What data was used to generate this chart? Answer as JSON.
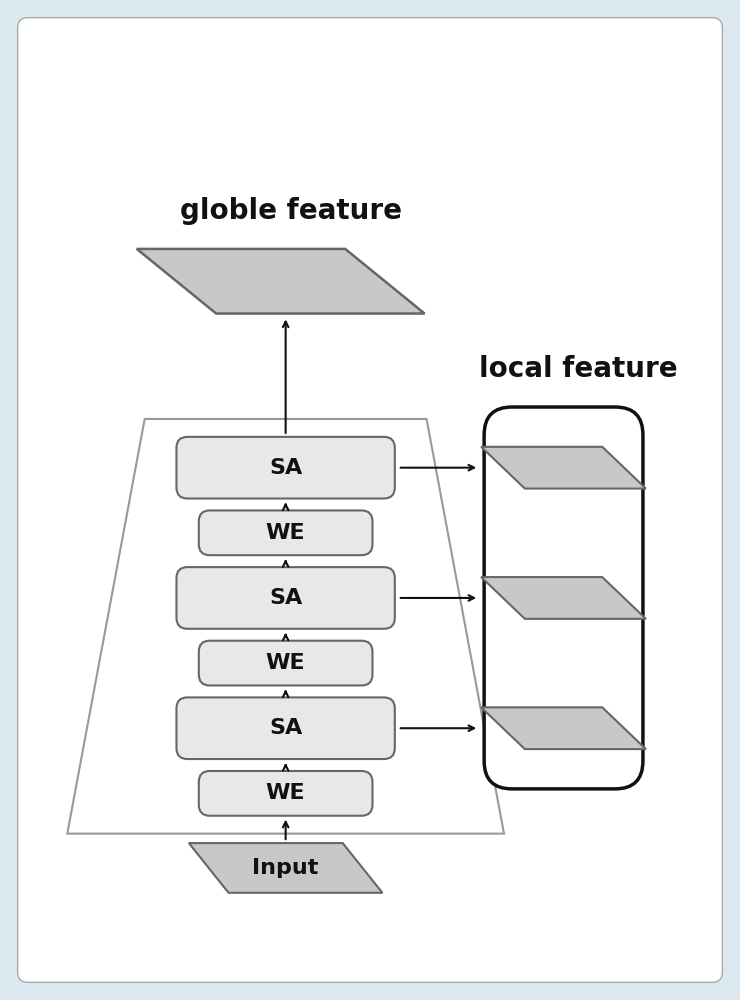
{
  "bg_color": "#dce8f0",
  "box_fill": "#e8e8e8",
  "box_edge": "#666666",
  "para_fill": "#c8c8c8",
  "para_edge": "#666666",
  "arrow_color": "#111111",
  "trap_fill": "#ffffff",
  "trap_edge": "#888888",
  "local_rect_fill": "#ffffff",
  "local_rect_edge": "#111111",
  "globle_label": "globle feature",
  "local_label": "local feature",
  "input_label": "Input",
  "stack_labels": [
    "WE",
    "SA",
    "WE",
    "SA",
    "WE",
    "SA"
  ],
  "label_fontsize": 16,
  "title_fontsize": 20,
  "outer_bg": "#cfe0ea"
}
